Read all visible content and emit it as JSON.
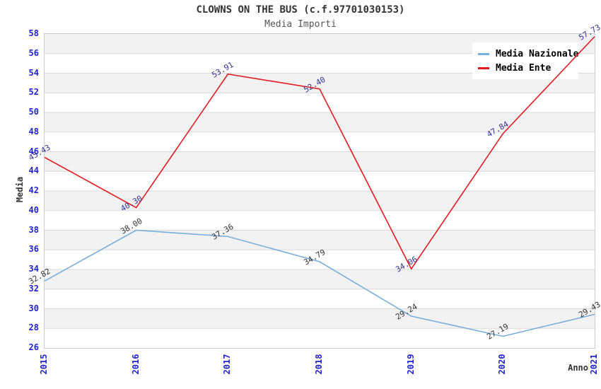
{
  "header": {
    "title": "CLOWNS ON THE BUS (c.f.97701030153)",
    "subtitle": "Media Importi"
  },
  "legend": {
    "position": "top-right",
    "items": [
      {
        "label": "Media Nazionale",
        "color": "#79aedb"
      },
      {
        "label": "Media Ente",
        "color": "#e11b22"
      }
    ]
  },
  "axes": {
    "y_title": "Media",
    "x_title": "Anno",
    "y_ticks": [
      26,
      28,
      30,
      32,
      34,
      36,
      38,
      40,
      42,
      44,
      46,
      48,
      50,
      52,
      54,
      56,
      58
    ],
    "x_ticks": [
      "2015",
      "2016",
      "2017",
      "2018",
      "2019",
      "2020",
      "2021"
    ],
    "tick_color": "#2222cc"
  },
  "chart_data": {
    "type": "line",
    "title": "CLOWNS ON THE BUS (c.f.97701030153)",
    "subtitle": "Media Importi",
    "categories": [
      "2015",
      "2016",
      "2017",
      "2018",
      "2019",
      "2020",
      "2021"
    ],
    "series": [
      {
        "name": "Media Nazionale",
        "color": "#79aedb",
        "label_color": "#333333",
        "values": [
          32.82,
          38.0,
          37.36,
          34.79,
          29.24,
          27.19,
          29.43
        ]
      },
      {
        "name": "Media Ente",
        "color": "#e11b22",
        "label_color": "#333399",
        "values": [
          45.43,
          40.3,
          53.91,
          52.4,
          34.06,
          47.84,
          57.73
        ]
      }
    ],
    "xlabel": "Anno",
    "ylabel": "Media",
    "ylim": [
      26,
      58
    ],
    "y_step": 2,
    "grid": "horizontal-bands",
    "legend_position": "top-right"
  },
  "colors": {
    "stripe": "#f2f2f2",
    "grid_line": "#d9d9d9",
    "plot_border": "#c9c9c9",
    "tick_label": "#2222cc",
    "text": "#333333",
    "subtitle": "#555555"
  }
}
